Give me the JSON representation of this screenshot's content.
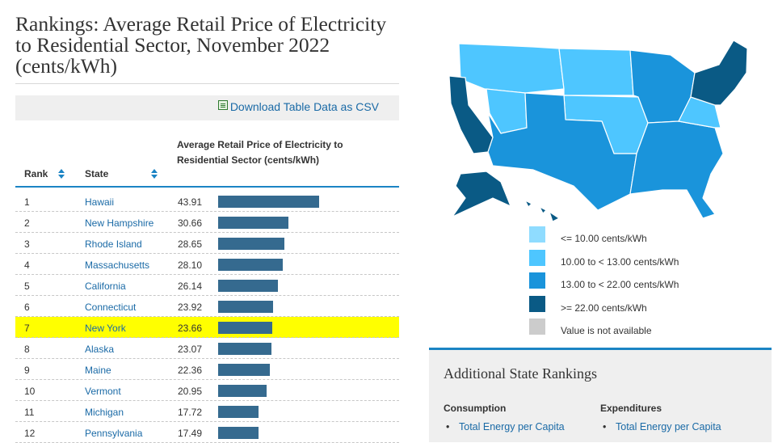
{
  "page": {
    "title": "Rankings: Average Retail Price of Electricity to Residential Sector, November 2022 (cents/kWh)",
    "csv_link": "Download Table Data as CSV"
  },
  "table": {
    "headers": {
      "rank": "Rank",
      "state": "State",
      "value": "Average Retail Price of Electricity to Residential Sector (cents/kWh)"
    },
    "max_value": 43.91,
    "rows": [
      {
        "rank": "1",
        "state": "Hawaii",
        "value": "43.91",
        "highlighted": false
      },
      {
        "rank": "2",
        "state": "New Hampshire",
        "value": "30.66",
        "highlighted": false
      },
      {
        "rank": "3",
        "state": "Rhode Island",
        "value": "28.65",
        "highlighted": false
      },
      {
        "rank": "4",
        "state": "Massachusetts",
        "value": "28.10",
        "highlighted": false
      },
      {
        "rank": "5",
        "state": "California",
        "value": "26.14",
        "highlighted": false
      },
      {
        "rank": "6",
        "state": "Connecticut",
        "value": "23.92",
        "highlighted": false
      },
      {
        "rank": "7",
        "state": "New York",
        "value": "23.66",
        "highlighted": true
      },
      {
        "rank": "8",
        "state": "Alaska",
        "value": "23.07",
        "highlighted": false
      },
      {
        "rank": "9",
        "state": "Maine",
        "value": "22.36",
        "highlighted": false
      },
      {
        "rank": "10",
        "state": "Vermont",
        "value": "20.95",
        "highlighted": false
      },
      {
        "rank": "11",
        "state": "Michigan",
        "value": "17.72",
        "highlighted": false
      },
      {
        "rank": "12",
        "state": "Pennsylvania",
        "value": "17.49",
        "highlighted": false
      }
    ]
  },
  "legend": {
    "items": [
      {
        "label": "<= 10.00 cents/kWh",
        "color": "#8fdcff"
      },
      {
        "label": "10.00 to < 13.00 cents/kWh",
        "color": "#4ec6ff"
      },
      {
        "label": "13.00 to < 22.00 cents/kWh",
        "color": "#1a94db"
      },
      {
        "label": ">= 22.00 cents/kWh",
        "color": "#0a5a85"
      },
      {
        "label": "Value is not available",
        "color": "#cccccc"
      }
    ]
  },
  "rankings": {
    "title": "Additional State Rankings",
    "consumption": {
      "heading": "Consumption",
      "item": "Total Energy per Capita"
    },
    "expenditures": {
      "heading": "Expenditures",
      "item": "Total Energy per Capita"
    }
  },
  "colors": {
    "accent": "#1b84c4",
    "link": "#1a6aa6",
    "bar": "#356a8f",
    "highlight": "#ffff00"
  }
}
